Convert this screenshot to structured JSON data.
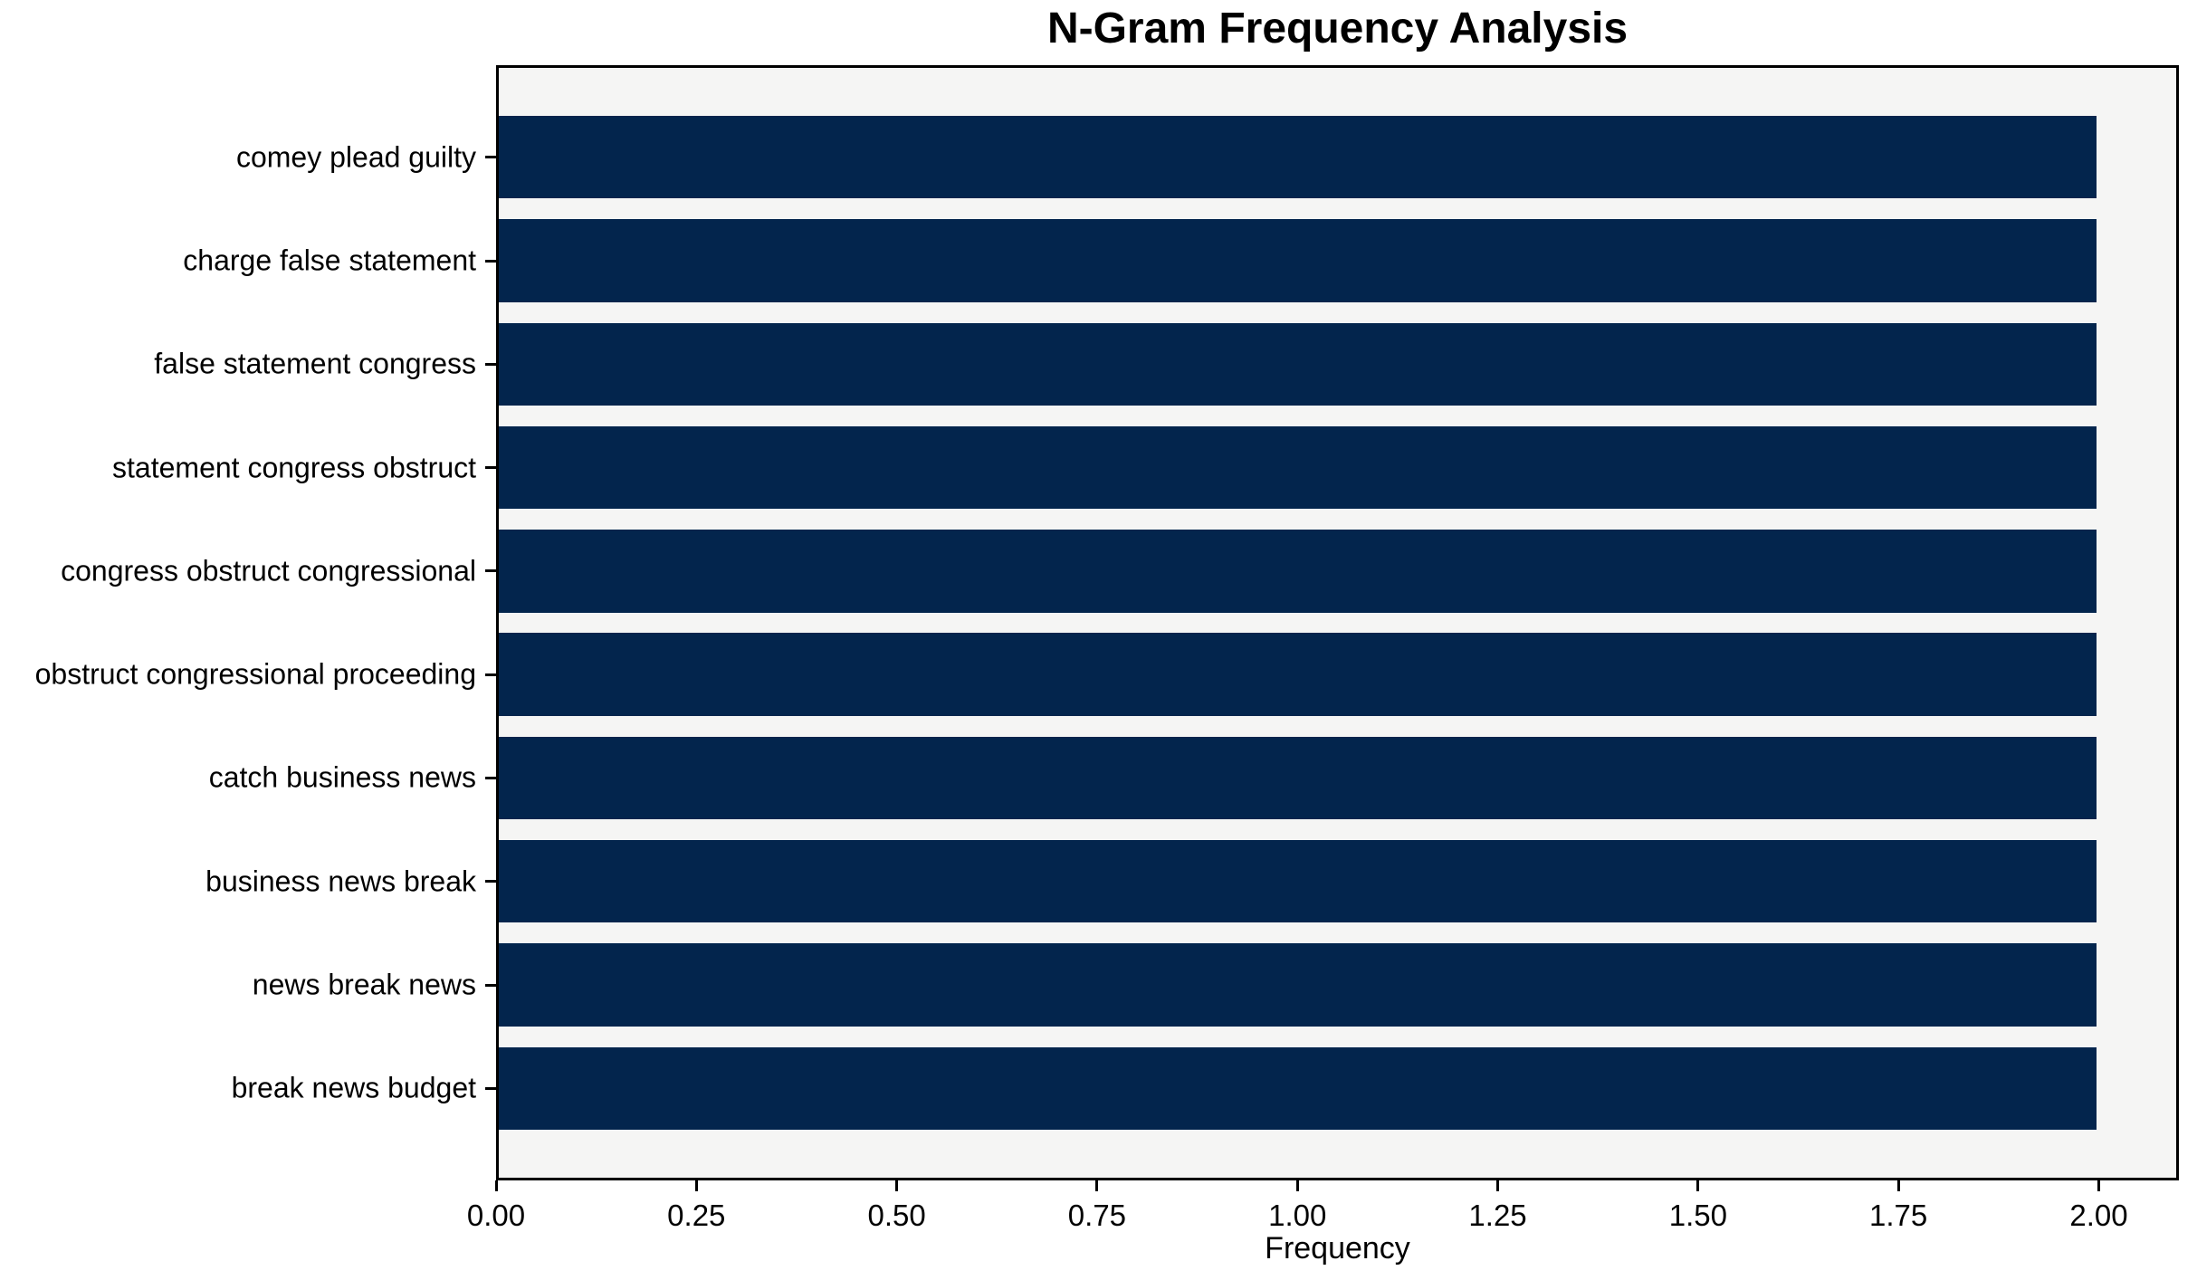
{
  "figure": {
    "background": "#ffffff",
    "plot_background": "#f5f5f4"
  },
  "chart_data": {
    "type": "bar",
    "orientation": "horizontal",
    "title": "N-Gram Frequency Analysis",
    "xlabel": "Frequency",
    "ylabel": "",
    "categories": [
      "comey plead guilty",
      "charge false statement",
      "false statement congress",
      "statement congress obstruct",
      "congress obstruct congressional",
      "obstruct congressional proceeding",
      "catch business news",
      "business news break",
      "news break news",
      "break news budget"
    ],
    "values": [
      2,
      2,
      2,
      2,
      2,
      2,
      2,
      2,
      2,
      2
    ],
    "xlim": [
      0,
      2.1
    ],
    "xticks": [
      0,
      0.25,
      0.5,
      0.75,
      1.0,
      1.25,
      1.5,
      1.75,
      2.0
    ],
    "xtick_labels": [
      "0.00",
      "0.25",
      "0.50",
      "0.75",
      "1.00",
      "1.25",
      "1.50",
      "1.75",
      "2.00"
    ],
    "bar_color": "#03254d",
    "grid": false,
    "legend": null
  }
}
